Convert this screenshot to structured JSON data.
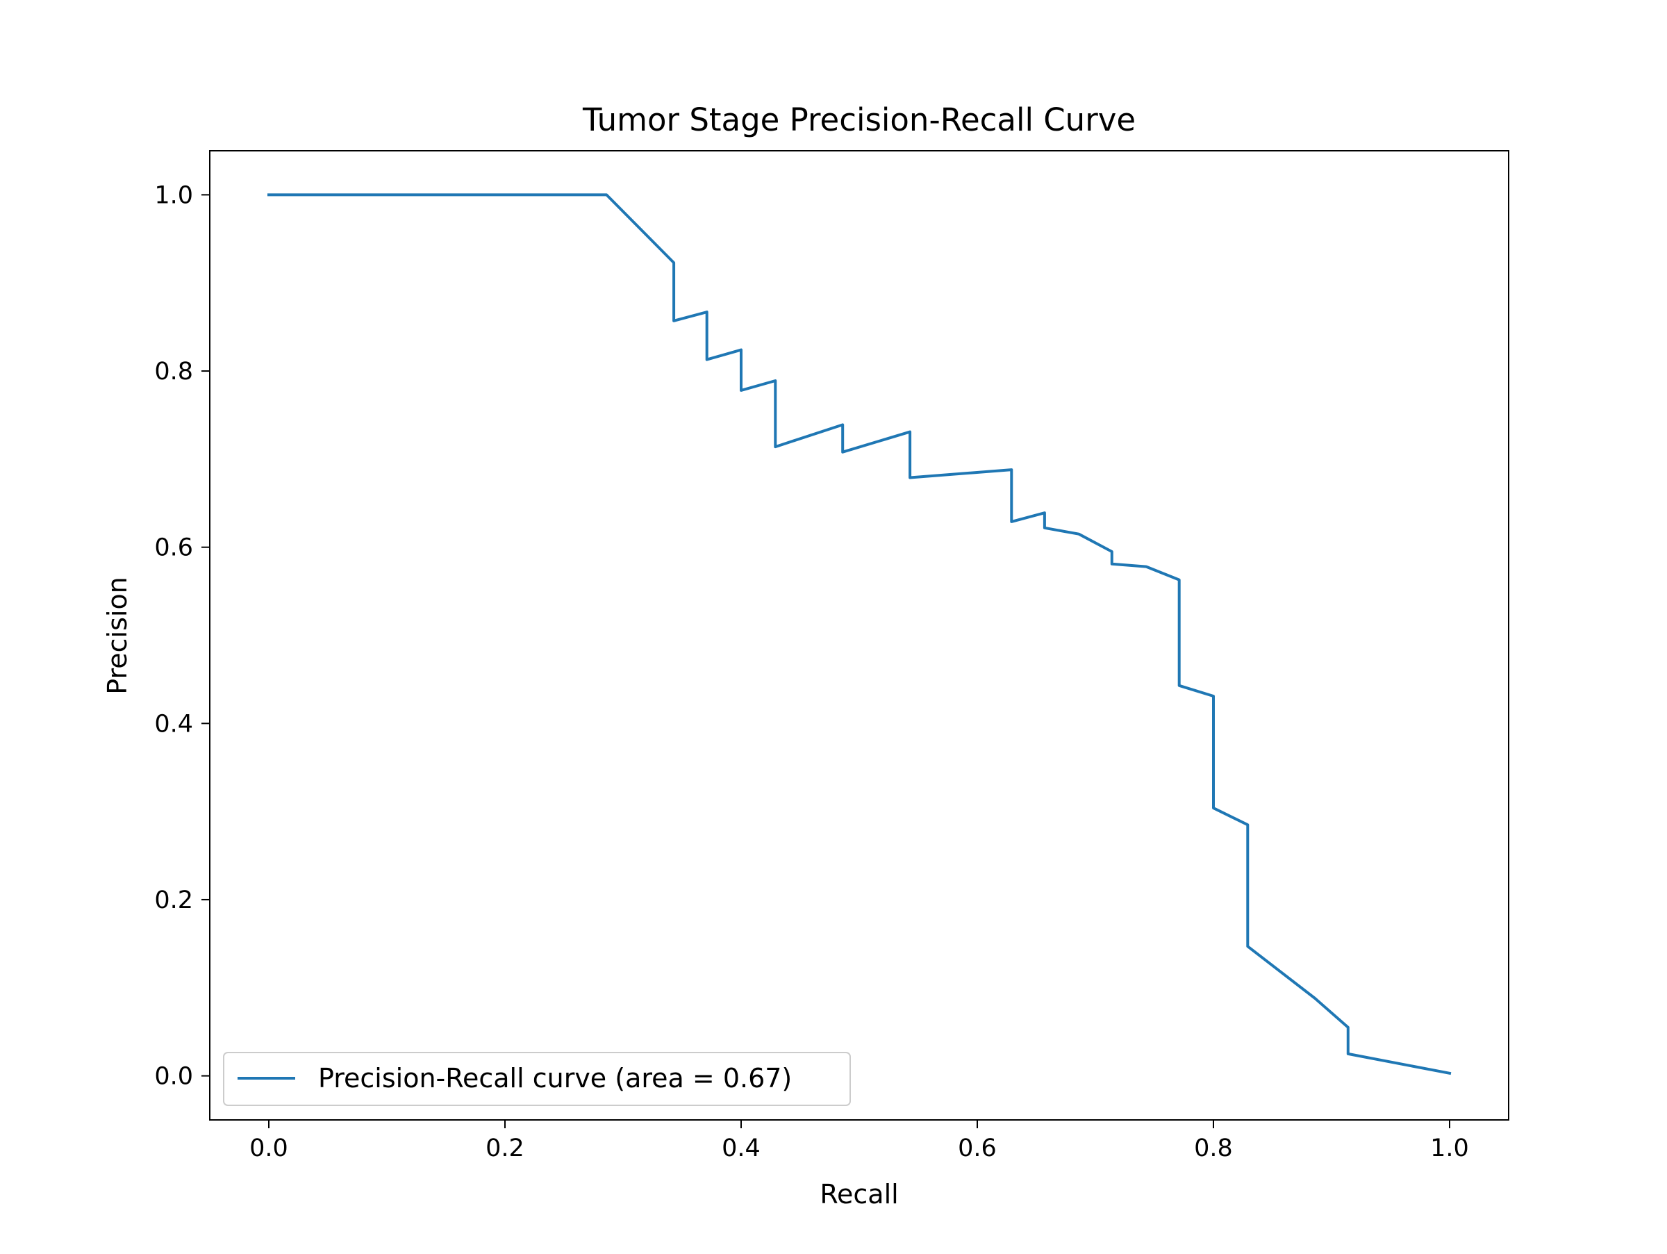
{
  "chart_data": {
    "type": "line",
    "title": "Tumor Stage Precision-Recall Curve",
    "xlabel": "Recall",
    "ylabel": "Precision",
    "xlim": [
      -0.05,
      1.05
    ],
    "ylim": [
      -0.05,
      1.05
    ],
    "xticks": [
      0.0,
      0.2,
      0.4,
      0.6,
      0.8,
      1.0
    ],
    "xtick_labels": [
      "0.0",
      "0.2",
      "0.4",
      "0.6",
      "0.8",
      "1.0"
    ],
    "yticks": [
      0.0,
      0.2,
      0.4,
      0.6,
      0.8,
      1.0
    ],
    "ytick_labels": [
      "0.0",
      "0.2",
      "0.4",
      "0.6",
      "0.8",
      "1.0"
    ],
    "grid": false,
    "legend_position": "lower-left",
    "line_color": "#1f77b4",
    "series": [
      {
        "name": "Precision-Recall curve (area = 0.67)",
        "x": [
          0.0,
          0.286,
          0.343,
          0.343,
          0.371,
          0.371,
          0.4,
          0.4,
          0.429,
          0.429,
          0.486,
          0.486,
          0.543,
          0.543,
          0.629,
          0.629,
          0.657,
          0.657,
          0.686,
          0.714,
          0.714,
          0.743,
          0.771,
          0.771,
          0.8,
          0.8,
          0.829,
          0.829,
          0.886,
          0.914,
          0.914,
          1.0
        ],
        "y": [
          1.0,
          1.0,
          0.923,
          0.857,
          0.867,
          0.813,
          0.824,
          0.778,
          0.789,
          0.714,
          0.739,
          0.708,
          0.731,
          0.679,
          0.688,
          0.629,
          0.639,
          0.622,
          0.615,
          0.595,
          0.581,
          0.578,
          0.563,
          0.443,
          0.431,
          0.304,
          0.285,
          0.147,
          0.088,
          0.055,
          0.025,
          0.003
        ]
      }
    ]
  }
}
